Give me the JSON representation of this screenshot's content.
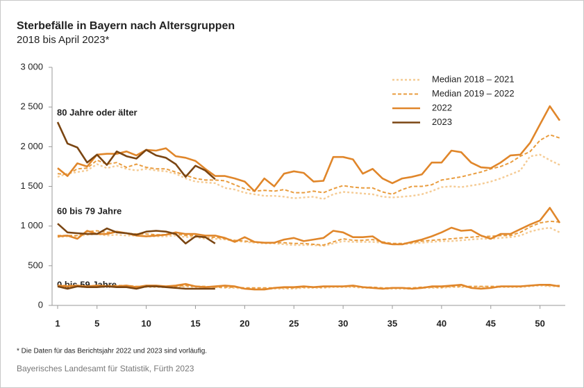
{
  "chart_data": {
    "type": "line",
    "title": "Sterbefälle in Bayern nach Altersgruppen",
    "subtitle": "2018 bis April 2023*",
    "x": [
      1,
      2,
      3,
      4,
      5,
      6,
      7,
      8,
      9,
      10,
      11,
      12,
      13,
      14,
      15,
      16,
      17,
      18,
      19,
      20,
      21,
      22,
      23,
      24,
      25,
      26,
      27,
      28,
      29,
      30,
      31,
      32,
      33,
      34,
      35,
      36,
      37,
      38,
      39,
      40,
      41,
      42,
      43,
      44,
      45,
      46,
      47,
      48,
      49,
      50,
      51,
      52
    ],
    "xlim": [
      1,
      52
    ],
    "xticks": [
      1,
      5,
      10,
      15,
      20,
      25,
      30,
      35,
      40,
      45,
      50
    ],
    "ylim": [
      0,
      3000
    ],
    "yticks": [
      0,
      500,
      {
        "value": 1000,
        "label": "1 000"
      },
      {
        "value": 1500,
        "label": "1 500"
      },
      {
        "value": 2000,
        "label": "2 000"
      },
      {
        "value": 2500,
        "label": "2 500"
      },
      {
        "value": 3000,
        "label": "3 000"
      }
    ],
    "legend": "top-right",
    "series": [
      {
        "name": "Median 2018 – 2021",
        "color": "#f5cb94",
        "style": "dotted"
      },
      {
        "name": "Median 2019 – 2022",
        "color": "#e99c3e",
        "style": "dashed"
      },
      {
        "name": "2022",
        "color": "#e0862a",
        "style": "solid"
      },
      {
        "name": "2023",
        "color": "#7a4512",
        "style": "solid"
      }
    ],
    "groups": [
      {
        "label": "80 Jahre oder älter",
        "values": [
          [
            1620,
            1660,
            1680,
            1700,
            1780,
            1730,
            1760,
            1720,
            1700,
            1720,
            1700,
            1690,
            1660,
            1600,
            1560,
            1550,
            1540,
            1480,
            1460,
            1420,
            1400,
            1380,
            1380,
            1370,
            1350,
            1360,
            1370,
            1340,
            1400,
            1430,
            1420,
            1410,
            1400,
            1370,
            1360,
            1370,
            1380,
            1400,
            1440,
            1490,
            1500,
            1490,
            1510,
            1530,
            1560,
            1600,
            1650,
            1700,
            1880,
            1900,
            1830,
            1770
          ],
          [
            1660,
            1650,
            1720,
            1730,
            1830,
            1780,
            1800,
            1740,
            1780,
            1740,
            1720,
            1720,
            1680,
            1640,
            1600,
            1580,
            1580,
            1570,
            1520,
            1470,
            1440,
            1450,
            1440,
            1460,
            1420,
            1420,
            1440,
            1420,
            1470,
            1510,
            1490,
            1480,
            1480,
            1430,
            1400,
            1460,
            1500,
            1500,
            1520,
            1580,
            1600,
            1620,
            1650,
            1680,
            1720,
            1750,
            1800,
            1880,
            1940,
            2080,
            2150,
            2110
          ],
          [
            1730,
            1630,
            1790,
            1750,
            1900,
            1910,
            1910,
            1940,
            1890,
            1960,
            1950,
            1980,
            1880,
            1860,
            1820,
            1720,
            1630,
            1630,
            1600,
            1560,
            1440,
            1600,
            1500,
            1660,
            1690,
            1670,
            1560,
            1570,
            1870,
            1870,
            1840,
            1660,
            1720,
            1600,
            1540,
            1600,
            1620,
            1650,
            1800,
            1800,
            1950,
            1930,
            1800,
            1740,
            1730,
            1800,
            1890,
            1900,
            2050,
            2280,
            2510,
            2330
          ],
          [
            2310,
            2040,
            1990,
            1800,
            1900,
            1770,
            1940,
            1880,
            1850,
            1960,
            1890,
            1860,
            1780,
            1620,
            1760,
            1700,
            1590,
            null,
            null,
            null,
            null,
            null,
            null,
            null,
            null,
            null,
            null,
            null,
            null,
            null,
            null,
            null,
            null,
            null,
            null,
            null,
            null,
            null,
            null,
            null,
            null,
            null,
            null,
            null,
            null,
            null,
            null,
            null,
            null,
            null,
            null,
            null
          ]
        ]
      },
      {
        "label": "60 bis 79 Jahre",
        "values": [
          [
            860,
            870,
            870,
            890,
            900,
            880,
            890,
            880,
            880,
            870,
            870,
            870,
            880,
            860,
            860,
            840,
            840,
            830,
            810,
            800,
            790,
            780,
            780,
            770,
            760,
            760,
            760,
            750,
            780,
            810,
            800,
            800,
            800,
            790,
            770,
            770,
            780,
            790,
            800,
            810,
            810,
            820,
            830,
            840,
            840,
            850,
            860,
            880,
            930,
            960,
            980,
            920
          ],
          [
            880,
            880,
            880,
            930,
            940,
            920,
            930,
            910,
            900,
            900,
            890,
            890,
            900,
            880,
            880,
            850,
            860,
            840,
            820,
            810,
            800,
            790,
            790,
            790,
            780,
            780,
            770,
            760,
            800,
            840,
            820,
            820,
            830,
            800,
            780,
            780,
            790,
            810,
            820,
            830,
            840,
            850,
            860,
            870,
            870,
            880,
            880,
            920,
            990,
            1040,
            1060,
            1050
          ],
          [
            870,
            880,
            840,
            940,
            900,
            900,
            930,
            910,
            880,
            870,
            880,
            890,
            920,
            900,
            900,
            880,
            880,
            850,
            800,
            860,
            800,
            790,
            790,
            830,
            850,
            810,
            830,
            850,
            940,
            920,
            860,
            860,
            870,
            790,
            770,
            770,
            800,
            830,
            870,
            920,
            980,
            940,
            950,
            880,
            840,
            900,
            900,
            960,
            1020,
            1070,
            1230,
            1040
          ],
          [
            1030,
            920,
            910,
            900,
            900,
            970,
            920,
            910,
            890,
            930,
            940,
            930,
            900,
            780,
            870,
            860,
            780,
            null,
            null,
            null,
            null,
            null,
            null,
            null,
            null,
            null,
            null,
            null,
            null,
            null,
            null,
            null,
            null,
            null,
            null,
            null,
            null,
            null,
            null,
            null,
            null,
            null,
            null,
            null,
            null,
            null,
            null,
            null,
            null,
            null,
            null,
            null
          ]
        ]
      },
      {
        "label": "0 bis 59 Jahre",
        "values": [
          [
            240,
            240,
            240,
            240,
            240,
            240,
            240,
            240,
            230,
            230,
            230,
            230,
            230,
            240,
            230,
            230,
            230,
            220,
            220,
            210,
            210,
            210,
            210,
            210,
            210,
            220,
            220,
            220,
            230,
            230,
            230,
            220,
            220,
            210,
            210,
            210,
            210,
            220,
            220,
            220,
            230,
            230,
            230,
            230,
            230,
            230,
            230,
            230,
            240,
            250,
            240,
            240
          ],
          [
            250,
            250,
            250,
            240,
            250,
            250,
            250,
            250,
            240,
            240,
            240,
            240,
            240,
            250,
            240,
            240,
            230,
            230,
            230,
            220,
            220,
            220,
            220,
            220,
            220,
            230,
            230,
            230,
            240,
            240,
            240,
            230,
            230,
            220,
            220,
            220,
            220,
            230,
            230,
            230,
            240,
            240,
            240,
            240,
            240,
            240,
            240,
            240,
            250,
            260,
            250,
            250
          ],
          [
            250,
            240,
            250,
            240,
            250,
            240,
            240,
            250,
            230,
            250,
            250,
            240,
            250,
            270,
            240,
            230,
            240,
            250,
            240,
            210,
            200,
            200,
            220,
            230,
            230,
            240,
            230,
            240,
            240,
            240,
            250,
            230,
            220,
            210,
            220,
            220,
            210,
            220,
            240,
            240,
            250,
            260,
            220,
            210,
            220,
            240,
            240,
            240,
            250,
            260,
            260,
            240
          ],
          [
            240,
            210,
            240,
            230,
            230,
            240,
            230,
            230,
            210,
            240,
            240,
            230,
            220,
            210,
            210,
            210,
            210,
            null,
            null,
            null,
            null,
            null,
            null,
            null,
            null,
            null,
            null,
            null,
            null,
            null,
            null,
            null,
            null,
            null,
            null,
            null,
            null,
            null,
            null,
            null,
            null,
            null,
            null,
            null,
            null,
            null,
            null,
            null,
            null,
            null,
            null,
            null
          ]
        ]
      }
    ],
    "note": "*   Die Daten für das Berichtsjahr 2022 und 2023 sind vorläufig.",
    "source": "Bayerisches Landesamt für Statistik, Fürth 2023"
  }
}
